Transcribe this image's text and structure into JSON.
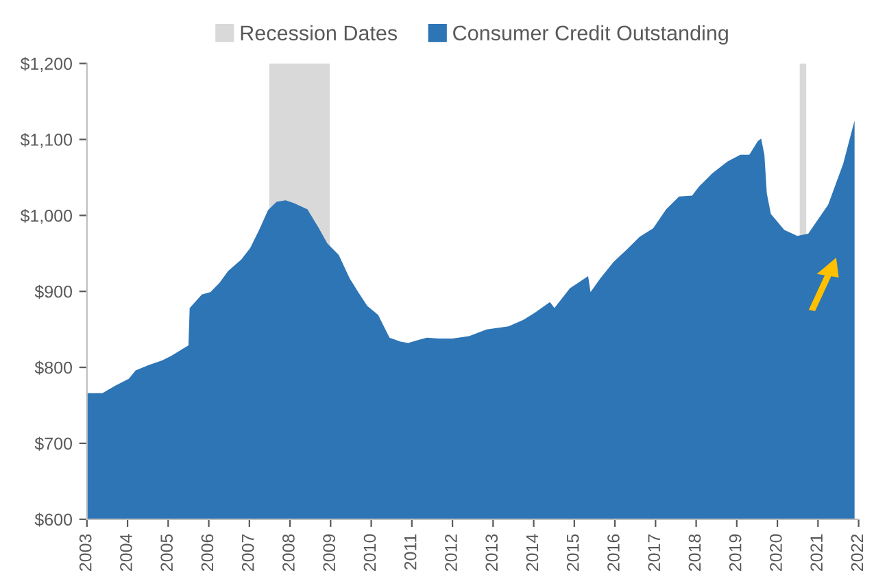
{
  "chart_data": {
    "type": "area",
    "x": [
      2003.0,
      2003.38,
      2003.7,
      2004.03,
      2004.2,
      2004.52,
      2004.85,
      2005.07,
      2005.5,
      2005.53,
      2005.83,
      2006.04,
      2006.26,
      2006.48,
      2006.8,
      2007.02,
      2007.24,
      2007.46,
      2007.67,
      2007.89,
      2008.1,
      2008.43,
      2008.7,
      2008.92,
      2009.2,
      2009.47,
      2009.68,
      2009.9,
      2010.17,
      2010.45,
      2010.72,
      2010.91,
      2011.15,
      2011.37,
      2011.66,
      2012.0,
      2012.41,
      2012.84,
      2013.38,
      2013.76,
      2014.03,
      2014.4,
      2014.51,
      2014.89,
      2015.34,
      2015.4,
      2015.64,
      2015.97,
      2016.29,
      2016.61,
      2016.94,
      2017.26,
      2017.58,
      2017.9,
      2018.07,
      2018.39,
      2018.77,
      2019.09,
      2019.31,
      2019.52,
      2019.6,
      2019.68,
      2019.74,
      2019.84,
      2020.17,
      2020.49,
      2020.76,
      2020.98,
      2021.25,
      2021.62,
      2021.9
    ],
    "series": [
      {
        "name": "Consumer Credit Outstanding",
        "color": "#2e75b6",
        "values": [
          766,
          766,
          776,
          785,
          796,
          803,
          809,
          815,
          829,
          878,
          896,
          899,
          911,
          927,
          942,
          957,
          981,
          1007,
          1018,
          1020,
          1016,
          1008,
          984,
          963,
          948,
          917,
          899,
          881,
          869,
          839,
          834,
          832,
          836,
          839,
          838,
          838,
          841,
          850,
          854,
          863,
          872,
          886,
          878,
          904,
          920,
          899,
          917,
          939,
          955,
          972,
          983,
          1008,
          1025,
          1026,
          1038,
          1055,
          1071,
          1080,
          1080,
          1098,
          1101,
          1080,
          1029,
          1002,
          981,
          973,
          976,
          993,
          1014,
          1068,
          1125
        ]
      }
    ],
    "bands": [
      {
        "axis": "x",
        "from": 2007.49,
        "to": 2008.98,
        "label": "Recession Dates",
        "color": "#d9d9d9"
      },
      {
        "axis": "x",
        "from": 2020.55,
        "to": 2020.71,
        "color": "#d9d9d9"
      }
    ],
    "xlim": [
      2003,
      2022
    ],
    "xticks": [
      2003,
      2004,
      2005,
      2006,
      2007,
      2008,
      2009,
      2010,
      2011,
      2012,
      2013,
      2014,
      2015,
      2016,
      2017,
      2018,
      2019,
      2020,
      2021,
      2022
    ],
    "ylim": [
      600,
      1200
    ],
    "yticks": [
      {
        "value": 600,
        "label": "$600"
      },
      {
        "value": 700,
        "label": "$700"
      },
      {
        "value": 800,
        "label": "$800"
      },
      {
        "value": 900,
        "label": "$900"
      },
      {
        "value": 1000,
        "label": "$1,000"
      },
      {
        "value": 1100,
        "label": "$1,100"
      },
      {
        "value": 1200,
        "label": "$1,200"
      }
    ],
    "grid": false,
    "legend": "top"
  }
}
